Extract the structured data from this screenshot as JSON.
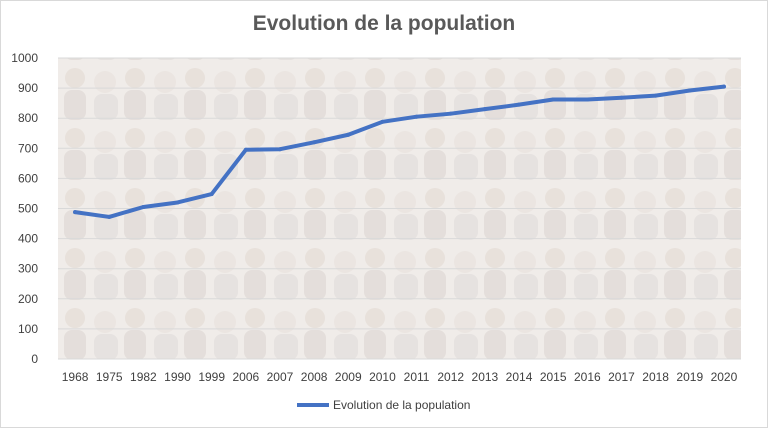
{
  "chart_data": {
    "type": "line",
    "title": "Evolution de la population",
    "categories": [
      "1968",
      "1975",
      "1982",
      "1990",
      "1999",
      "2006",
      "2007",
      "2008",
      "2009",
      "2010",
      "2011",
      "2012",
      "2013",
      "2014",
      "2015",
      "2016",
      "2017",
      "2018",
      "2019",
      "2020"
    ],
    "series": [
      {
        "name": "Evolution de la population",
        "color": "#4472c4",
        "values": [
          488,
          472,
          505,
          520,
          548,
          695,
          697,
          720,
          745,
          788,
          805,
          815,
          830,
          845,
          862,
          862,
          868,
          875,
          892,
          905
        ]
      }
    ],
    "ylim": [
      0,
      1000
    ],
    "yticks": [
      0,
      100,
      200,
      300,
      400,
      500,
      600,
      700,
      800,
      900,
      1000
    ],
    "grid": true,
    "legend": "bottom",
    "background": "crowd photo, faded"
  }
}
